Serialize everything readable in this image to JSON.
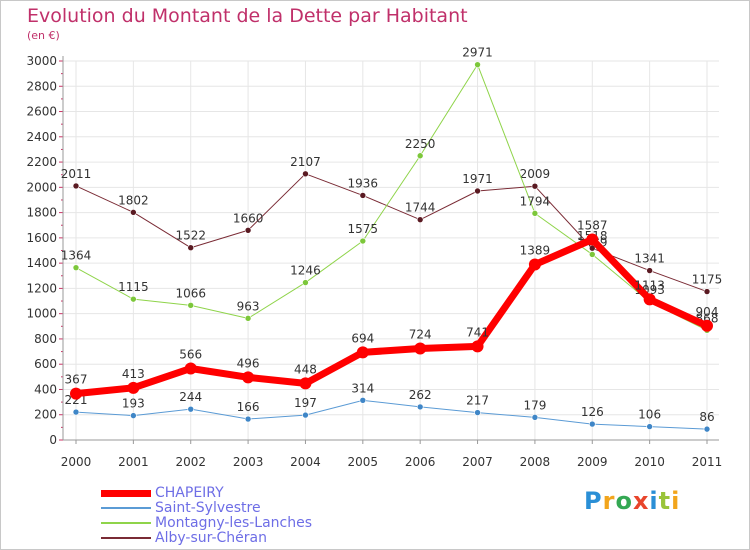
{
  "header": {
    "title": "Evolution du Montant de la Dette par Habitant",
    "unit": "(en €)"
  },
  "logo": {
    "text": "Proxiti",
    "letter_colors": [
      "#2a8fd6",
      "#f2a51c",
      "#34a853",
      "#e8452c",
      "#2a8fd6",
      "#9ac43a",
      "#f2a51c"
    ]
  },
  "colors": {
    "axis": "#999999",
    "grid": "#e6e6e6",
    "tick_text": "#333333",
    "label_text": "#333333",
    "title": "#c0306a"
  },
  "chart_data": {
    "type": "line",
    "title": "Evolution du Montant de la Dette par Habitant",
    "ylabel": "(en €)",
    "xlabel": "",
    "x": [
      "2000",
      "2001",
      "2002",
      "2003",
      "2004",
      "2005",
      "2006",
      "2007",
      "2008",
      "2009",
      "2010",
      "2011"
    ],
    "ylim": [
      0,
      3000
    ],
    "yticks": [
      0,
      200,
      400,
      600,
      800,
      1000,
      1200,
      1400,
      1600,
      1800,
      2000,
      2200,
      2400,
      2600,
      2800,
      3000
    ],
    "grid": true,
    "legend_position": "bottom-left",
    "series": [
      {
        "name": "Alby-sur-Chéran",
        "color": "#7a2b35",
        "marker_color": "#5a1a22",
        "width": 1,
        "marker_r": 3,
        "values": [
          2011,
          1802,
          1522,
          1660,
          2107,
          1936,
          1744,
          1971,
          2009,
          1518,
          1341,
          1175
        ]
      },
      {
        "name": "Montagny-les-Lanches",
        "color": "#8fd44a",
        "marker_color": "#7cc73a",
        "width": 1,
        "marker_r": 3,
        "values": [
          1364,
          1115,
          1066,
          963,
          1246,
          1575,
          2250,
          2971,
          1794,
          1469,
          1093,
          868
        ]
      },
      {
        "name": "Saint-Sylvestre",
        "color": "#5b9bd5",
        "marker_color": "#3f86c7",
        "width": 1,
        "marker_r": 3,
        "values": [
          221,
          193,
          244,
          166,
          197,
          314,
          262,
          217,
          179,
          126,
          106,
          86
        ]
      },
      {
        "name": "CHAPEIRY",
        "color": "#ff0000",
        "marker_color": "#ff0000",
        "width": 7,
        "marker_r": 6,
        "values": [
          367,
          413,
          566,
          496,
          448,
          694,
          724,
          741,
          1389,
          1587,
          1113,
          904
        ]
      }
    ],
    "data_labels": [
      [
        "2011",
        "1802",
        "1522",
        "1660",
        "2107",
        "1936",
        "1744",
        "1971",
        "2009",
        "1518",
        "1341",
        "1175"
      ],
      [
        "1364",
        "1115",
        "1066",
        "963",
        "1246",
        "1575",
        "2250",
        "2971",
        "1794",
        "1469",
        "1093",
        "868"
      ],
      [
        "221",
        "193",
        "244",
        "166",
        "197",
        "314",
        "262",
        "217",
        "179",
        "126",
        "106",
        "86"
      ],
      [
        "367",
        "413",
        "566",
        "496",
        "448",
        "694",
        "724",
        "741",
        "1389",
        "1587",
        "1113",
        "904"
      ]
    ]
  },
  "legend": {
    "items": [
      {
        "label": "CHAPEIRY",
        "color": "#ff0000",
        "thickness": 7
      },
      {
        "label": "Saint-Sylvestre",
        "color": "#5b9bd5",
        "thickness": 2
      },
      {
        "label": "Montagny-les-Lanches",
        "color": "#8fd44a",
        "thickness": 2
      },
      {
        "label": "Alby-sur-Chéran",
        "color": "#7a2b35",
        "thickness": 2
      }
    ]
  }
}
